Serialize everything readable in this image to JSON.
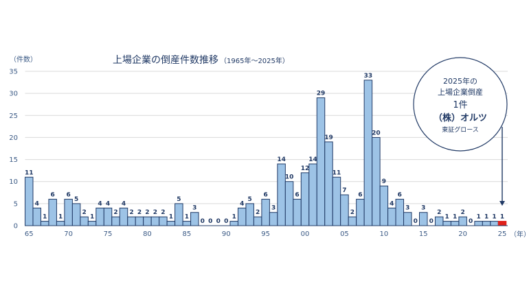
{
  "chart_data": {
    "type": "bar",
    "title": "上場企業の倒産件数推移",
    "subtitle": "（1965年～2025年）",
    "ylabel": "（件数）",
    "xunit": "（年）",
    "ylim": [
      0,
      35
    ],
    "yticks": [
      0,
      5,
      10,
      15,
      20,
      25,
      30,
      35
    ],
    "xtick_labels": [
      "65",
      "70",
      "75",
      "80",
      "85",
      "90",
      "95",
      "00",
      "05",
      "10",
      "15",
      "20",
      "25"
    ],
    "years": [
      1965,
      1966,
      1967,
      1968,
      1969,
      1970,
      1971,
      1972,
      1973,
      1974,
      1975,
      1976,
      1977,
      1978,
      1979,
      1980,
      1981,
      1982,
      1983,
      1984,
      1985,
      1986,
      1987,
      1988,
      1989,
      1990,
      1991,
      1992,
      1993,
      1994,
      1995,
      1996,
      1997,
      1998,
      1999,
      2000,
      2001,
      2002,
      2003,
      2004,
      2005,
      2006,
      2007,
      2008,
      2009,
      2010,
      2011,
      2012,
      2013,
      2014,
      2015,
      2016,
      2017,
      2018,
      2019,
      2020,
      2021,
      2022,
      2023,
      2024,
      2025
    ],
    "values": [
      11,
      4,
      1,
      6,
      1,
      6,
      5,
      2,
      1,
      4,
      4,
      2,
      4,
      2,
      2,
      2,
      2,
      2,
      1,
      5,
      1,
      3,
      0,
      0,
      0,
      0,
      1,
      4,
      5,
      2,
      6,
      3,
      14,
      10,
      6,
      12,
      14,
      29,
      19,
      11,
      7,
      2,
      6,
      33,
      20,
      9,
      4,
      6,
      3,
      0,
      3,
      0,
      2,
      1,
      1,
      2,
      0,
      1,
      1,
      1,
      1
    ],
    "bar_color": "#9dc3e6",
    "bar_edge": "#1f3864",
    "highlight_color": "#e0211b",
    "grid": true
  },
  "callout": {
    "line1": "2025年の",
    "line2": "上場企業倒産",
    "line3": "1件",
    "line4": "（株）オルツ",
    "line5": "東証グロース"
  }
}
